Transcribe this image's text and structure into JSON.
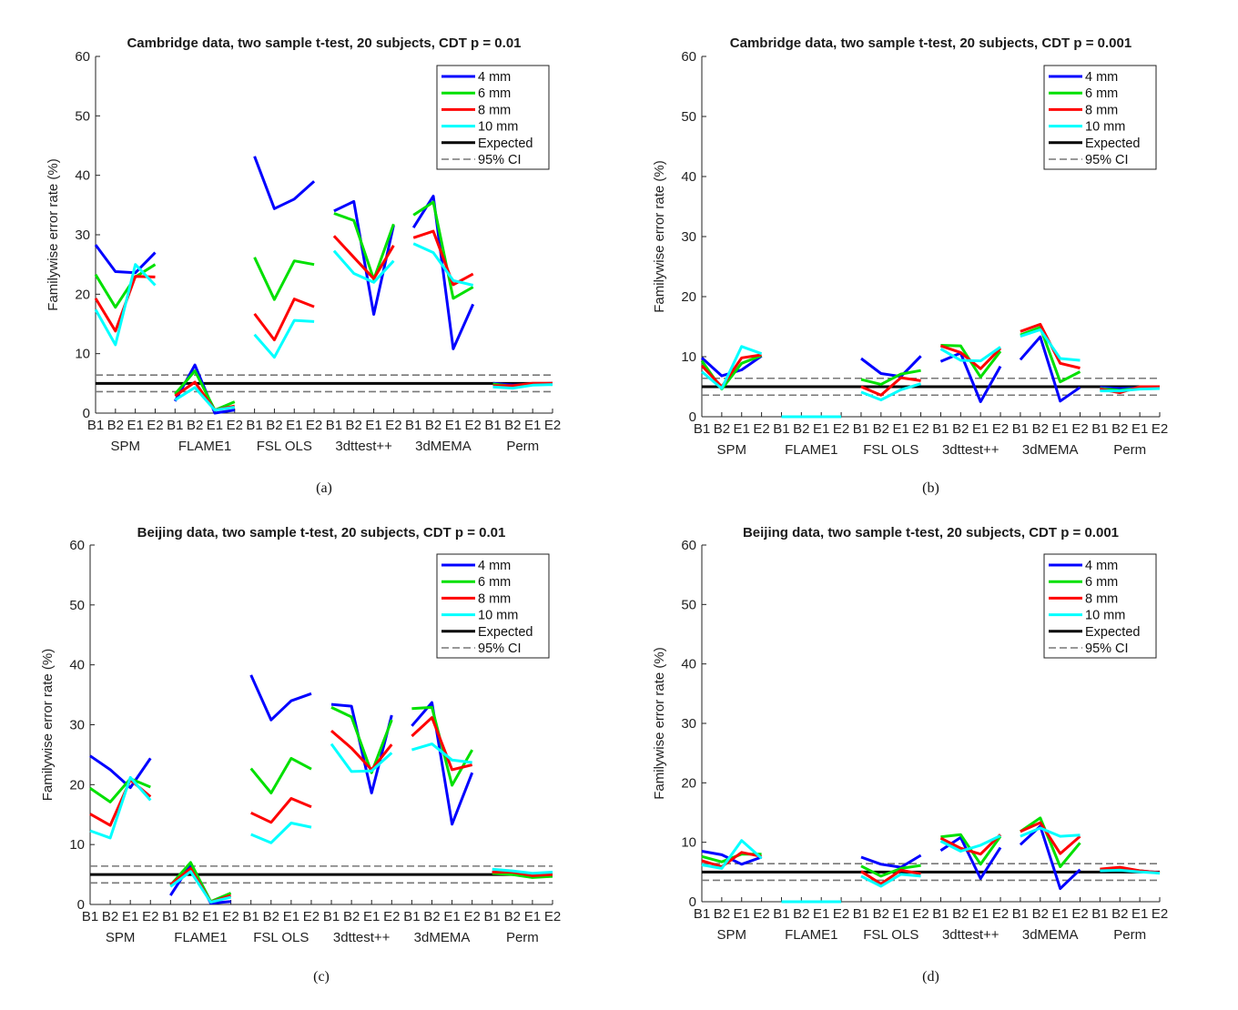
{
  "chart_data": [
    {
      "type": "line",
      "caption": "(a)",
      "title": "Cambridge data, two sample t-test, 20 subjects, CDT p = 0.01",
      "ylabel": "Familywise error rate (%)",
      "ylim": [
        0,
        60
      ],
      "yticks": [
        "0",
        "10",
        "20",
        "30",
        "40",
        "50",
        "60"
      ],
      "xtick_labels": [
        "B1",
        "B2",
        "E1",
        "E2"
      ],
      "groups": [
        "SPM",
        "FLAME1",
        "FSL OLS",
        "3dttest++",
        "3dMEMA",
        "Perm"
      ],
      "expected": 5,
      "ci": [
        3.6,
        6.4
      ],
      "series": [
        {
          "name": "4 mm",
          "color": "#0000ff",
          "values": [
            28.3,
            23.8,
            23.6,
            27.0,
            2.0,
            8.1,
            0.0,
            0.5,
            43.2,
            34.4,
            36.0,
            39.0,
            34.0,
            35.6,
            16.6,
            31.6,
            31.2,
            36.5,
            10.8,
            18.3,
            5.0,
            4.7,
            4.9,
            5.0
          ]
        },
        {
          "name": "6 mm",
          "color": "#00e000",
          "values": [
            23.3,
            17.8,
            22.9,
            25.0,
            3.2,
            7.1,
            0.5,
            1.9,
            26.2,
            19.1,
            25.6,
            25.0,
            33.6,
            32.4,
            22.5,
            31.8,
            33.3,
            35.5,
            19.3,
            21.2,
            4.9,
            4.5,
            4.9,
            4.8
          ]
        },
        {
          "name": "8 mm",
          "color": "#ff0000",
          "values": [
            19.3,
            13.8,
            23.0,
            22.9,
            2.9,
            5.2,
            0.5,
            1.2,
            16.7,
            12.3,
            19.2,
            17.9,
            29.8,
            26.2,
            22.6,
            28.2,
            29.5,
            30.6,
            21.6,
            23.4,
            4.6,
            4.6,
            5.0,
            5.0
          ]
        },
        {
          "name": "10 mm",
          "color": "#00ffff",
          "values": [
            17.4,
            11.5,
            25.0,
            21.5,
            2.2,
            4.3,
            0.5,
            1.0,
            13.2,
            9.4,
            15.6,
            15.4,
            27.3,
            23.5,
            22.0,
            25.6,
            28.5,
            27.0,
            22.3,
            21.5,
            4.4,
            4.2,
            4.7,
            4.8
          ]
        }
      ],
      "legend": [
        "4 mm",
        "6 mm",
        "8 mm",
        "10 mm",
        "Expected",
        "95% CI"
      ],
      "legend_position": "top-right"
    },
    {
      "type": "line",
      "caption": "(b)",
      "title": "Cambridge data, two sample t-test, 20 subjects, CDT p = 0.001",
      "ylabel": "Familywise error rate (%)",
      "ylim": [
        0,
        60
      ],
      "yticks": [
        "0",
        "10",
        "20",
        "30",
        "40",
        "50",
        "60"
      ],
      "xtick_labels": [
        "B1",
        "B2",
        "E1",
        "E2"
      ],
      "groups": [
        "SPM",
        "FLAME1",
        "FSL OLS",
        "3dttest++",
        "3dMEMA",
        "Perm"
      ],
      "expected": 5,
      "ci": [
        3.6,
        6.4
      ],
      "series": [
        {
          "name": "4 mm",
          "color": "#0000ff",
          "values": [
            9.8,
            6.8,
            7.8,
            10.1,
            0,
            0,
            0,
            0,
            9.7,
            7.2,
            6.7,
            10.1,
            9.2,
            10.6,
            2.5,
            8.4,
            9.5,
            13.3,
            2.6,
            4.9,
            4.9,
            4.7,
            4.8,
            4.9
          ]
        },
        {
          "name": "6 mm",
          "color": "#00e000",
          "values": [
            9.3,
            4.6,
            8.9,
            10.2,
            0,
            0,
            0,
            0,
            6.2,
            5.4,
            7.1,
            7.7,
            11.9,
            11.8,
            6.6,
            10.9,
            13.6,
            14.9,
            5.8,
            7.5,
            4.7,
            4.4,
            4.8,
            4.8
          ]
        },
        {
          "name": "8 mm",
          "color": "#ff0000",
          "values": [
            8.5,
            5.0,
            9.8,
            10.3,
            0,
            0,
            0,
            0,
            5.0,
            3.6,
            6.5,
            6.0,
            11.8,
            10.7,
            8.0,
            11.4,
            14.2,
            15.4,
            8.9,
            8.1,
            4.6,
            4.0,
            5.0,
            5.0
          ]
        },
        {
          "name": "10 mm",
          "color": "#00ffff",
          "values": [
            7.5,
            4.7,
            11.7,
            10.5,
            0,
            0,
            0,
            0,
            4.1,
            2.8,
            4.5,
            5.5,
            11.3,
            9.4,
            9.3,
            11.6,
            13.4,
            14.5,
            9.7,
            9.4,
            4.3,
            4.3,
            4.6,
            4.7
          ]
        }
      ],
      "legend": [
        "4 mm",
        "6 mm",
        "8 mm",
        "10 mm",
        "Expected",
        "95% CI"
      ],
      "legend_position": "top-right"
    },
    {
      "type": "line",
      "caption": "(c)",
      "title": "Beijing data, two sample t-test, 20 subjects, CDT p = 0.01",
      "ylabel": "Familywise error rate (%)",
      "ylim": [
        0,
        60
      ],
      "yticks": [
        "0",
        "10",
        "20",
        "30",
        "40",
        "50",
        "60"
      ],
      "xtick_labels": [
        "B1",
        "B2",
        "E1",
        "E2"
      ],
      "groups": [
        "SPM",
        "FLAME1",
        "FSL OLS",
        "3dttest++",
        "3dMEMA",
        "Perm"
      ],
      "expected": 5,
      "ci": [
        3.6,
        6.4
      ],
      "series": [
        {
          "name": "4 mm",
          "color": "#0000ff",
          "values": [
            24.8,
            22.5,
            19.5,
            24.4,
            1.5,
            6.7,
            0.2,
            0.5,
            38.3,
            30.8,
            34.0,
            35.2,
            33.4,
            33.1,
            18.6,
            31.6,
            29.8,
            33.7,
            13.4,
            22.0,
            5.4,
            5.5,
            4.9,
            5.3
          ]
        },
        {
          "name": "6 mm",
          "color": "#00e000",
          "values": [
            19.4,
            17.1,
            21.0,
            19.6,
            3.2,
            7.0,
            0.5,
            1.9,
            22.7,
            18.6,
            24.4,
            22.6,
            32.9,
            31.3,
            22.0,
            30.8,
            32.7,
            32.9,
            19.9,
            25.8,
            5.2,
            5.0,
            4.5,
            4.7
          ]
        },
        {
          "name": "8 mm",
          "color": "#ff0000",
          "values": [
            15.1,
            13.2,
            20.8,
            18.0,
            3.3,
            6.0,
            0.4,
            1.5,
            15.3,
            13.7,
            17.7,
            16.3,
            29.0,
            26.1,
            22.5,
            26.7,
            28.1,
            31.2,
            22.5,
            23.3,
            5.4,
            5.4,
            4.8,
            5.0
          ]
        },
        {
          "name": "10 mm",
          "color": "#00ffff",
          "values": [
            12.3,
            11.1,
            21.2,
            17.4,
            3.0,
            5.5,
            0.4,
            1.2,
            11.7,
            10.3,
            13.6,
            12.9,
            26.8,
            22.2,
            22.3,
            25.3,
            25.8,
            26.8,
            24.1,
            23.7,
            5.9,
            5.6,
            5.2,
            5.4
          ]
        }
      ],
      "legend": [
        "4 mm",
        "6 mm",
        "8 mm",
        "10 mm",
        "Expected",
        "95% CI"
      ],
      "legend_position": "top-right"
    },
    {
      "type": "line",
      "caption": "(d)",
      "title": "Beijing data, two sample t-test, 20 subjects, CDT p = 0.001",
      "ylabel": "Familywise error rate (%)",
      "ylim": [
        0,
        60
      ],
      "yticks": [
        "0",
        "10",
        "20",
        "30",
        "40",
        "50",
        "60"
      ],
      "xtick_labels": [
        "B1",
        "B2",
        "E1",
        "E2"
      ],
      "groups": [
        "SPM",
        "FLAME1",
        "FSL OLS",
        "3dttest++",
        "3dMEMA",
        "Perm"
      ],
      "expected": 5,
      "ci": [
        3.6,
        6.4
      ],
      "series": [
        {
          "name": "4 mm",
          "color": "#0000ff",
          "values": [
            8.5,
            7.9,
            6.3,
            7.5,
            0,
            0,
            0,
            0,
            7.5,
            6.3,
            5.8,
            7.8,
            8.6,
            10.8,
            3.9,
            9.1,
            9.6,
            12.7,
            2.2,
            5.4,
            5.2,
            5.4,
            5.2,
            4.9
          ]
        },
        {
          "name": "6 mm",
          "color": "#00e000",
          "values": [
            7.6,
            6.7,
            8.0,
            8.0,
            0,
            0,
            0,
            0,
            6.0,
            4.3,
            5.6,
            6.1,
            10.9,
            11.3,
            6.3,
            11.0,
            11.8,
            14.1,
            5.9,
            9.9,
            5.3,
            5.6,
            5.2,
            4.8
          ]
        },
        {
          "name": "8 mm",
          "color": "#ff0000",
          "values": [
            6.9,
            5.9,
            8.3,
            7.6,
            0,
            0,
            0,
            0,
            5.1,
            3.0,
            5.3,
            4.7,
            10.7,
            9.0,
            8.0,
            11.3,
            11.8,
            13.3,
            8.1,
            11.0,
            5.5,
            5.8,
            5.2,
            4.9
          ]
        },
        {
          "name": "10 mm",
          "color": "#00ffff",
          "values": [
            6.2,
            5.6,
            10.3,
            7.3,
            0,
            0,
            0,
            0,
            4.3,
            2.6,
            4.6,
            4.3,
            10.2,
            8.5,
            9.5,
            11.1,
            11.0,
            12.4,
            11.0,
            11.2,
            5.2,
            5.3,
            5.0,
            4.8
          ]
        }
      ],
      "legend": [
        "4 mm",
        "6 mm",
        "8 mm",
        "10 mm",
        "Expected",
        "95% CI"
      ],
      "legend_position": "top-right"
    }
  ]
}
